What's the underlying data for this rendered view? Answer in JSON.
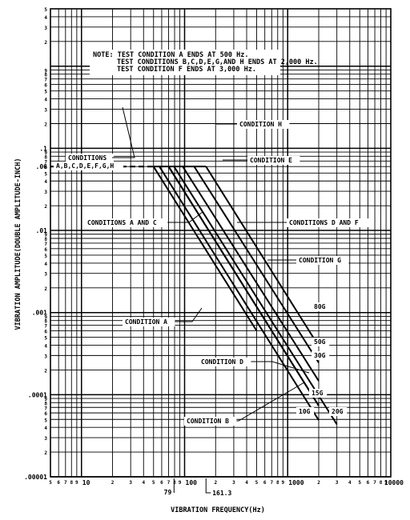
{
  "chart_data": {
    "type": "line",
    "x_scale": "log",
    "y_scale": "log",
    "xlim": [
      5,
      10000
    ],
    "ylim": [
      1e-05,
      5
    ],
    "xlabel": "VIBRATION FREQUENCY(Hz)",
    "ylabel": "VIBRATION AMPLITUDE(DOUBLE AMPLITUDE-INCH)",
    "grid": true,
    "note_lines": [
      "NOTE: TEST CONDITION A ENDS AT 500 Hz.",
      "TEST CONDITIONS B,C,D,E,G,AND H ENDS AT 2,000 Hz.",
      "TEST CONDITION F ENDS AT 3,000 Hz."
    ],
    "y_major_ticks": [
      {
        "value": 1e-05,
        "label": ".00001"
      },
      {
        "value": 0.0001,
        "label": ".0001"
      },
      {
        "value": 0.001,
        "label": ".001"
      },
      {
        "value": 0.01,
        "label": ".01"
      },
      {
        "value": 0.1,
        "label": ".1"
      }
    ],
    "y_extra_ticks": [
      {
        "value": 0.06,
        "label": ".06"
      }
    ],
    "x_major_ticks": [
      {
        "value": 10,
        "label": "10"
      },
      {
        "value": 100,
        "label": "100"
      },
      {
        "value": 1000,
        "label": "1000"
      },
      {
        "value": 10000,
        "label": "10000"
      }
    ],
    "x_marked_values": [
      {
        "value": 79,
        "label": "79"
      },
      {
        "value": 161.3,
        "label": "161.3"
      }
    ],
    "plateau": {
      "amplitude": 0.06,
      "x_start": 5,
      "style": "dashed"
    },
    "series": [
      {
        "name": "CONDITION A",
        "g": "",
        "x": [
          50,
          500
        ],
        "y": [
          0.06,
          0.0006
        ]
      },
      {
        "name": "CONDITION B",
        "g": "10G",
        "x": [
          57,
          2000
        ],
        "y": [
          0.06,
          4.89e-05
        ]
      },
      {
        "name": "CONDITIONS A AND C",
        "g": "",
        "x": [
          70,
          2000
        ],
        "y": [
          0.06,
          7.34e-05
        ]
      },
      {
        "name": "CONDITIONS D AND F",
        "g": "20G",
        "x": [
          79,
          3000
        ],
        "y": [
          0.06,
          4.35e-05
        ]
      },
      {
        "name": "CONDITION D",
        "g": "15G",
        "x": [
          70,
          2000
        ],
        "y": [
          0.06,
          7.34e-05
        ]
      },
      {
        "name": "CONDITION G",
        "g": "30G",
        "x": [
          96,
          2000
        ],
        "y": [
          0.06,
          0.000147
        ]
      },
      {
        "name": "CONDITION E",
        "g": "50G",
        "x": [
          124,
          2000
        ],
        "y": [
          0.06,
          0.000245
        ]
      },
      {
        "name": "CONDITION H",
        "g": "80G",
        "x": [
          161.3,
          2000
        ],
        "y": [
          0.06,
          0.00039
        ]
      }
    ],
    "annotations": [
      {
        "text": "CONDITIONS",
        "text2": "A,B,C,D,E,F,G,H"
      },
      {
        "text": "CONDITION H"
      },
      {
        "text": "CONDITION E"
      },
      {
        "text": "CONDITIONS A AND C"
      },
      {
        "text": "CONDITIONS D AND F"
      },
      {
        "text": "CONDITION G"
      },
      {
        "text": "CONDITION A"
      },
      {
        "text": "CONDITION D"
      },
      {
        "text": "CONDITION B"
      }
    ],
    "g_labels": [
      "80G",
      "50G",
      "30G",
      "15G",
      "10G",
      "20G"
    ]
  }
}
